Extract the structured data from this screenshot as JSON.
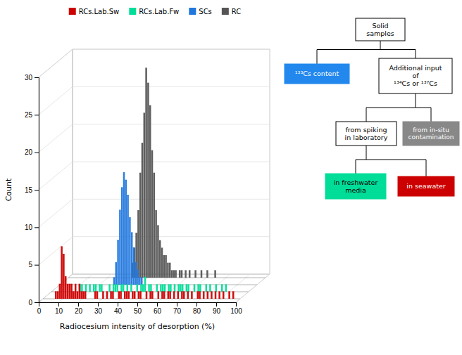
{
  "chart_data": {
    "type": "histogram",
    "xlabel": "Radiocesium intensity of desorption (%)",
    "ylabel": "Count",
    "bins": [
      0,
      1,
      2,
      3,
      4,
      5,
      6,
      7,
      8,
      9,
      10,
      11,
      12,
      13,
      14,
      15,
      16,
      17,
      18,
      19,
      20,
      21,
      22,
      23,
      24,
      25,
      26,
      27,
      28,
      29,
      30,
      31,
      32,
      33,
      34,
      35,
      36,
      37,
      38,
      39,
      40,
      41,
      42,
      43,
      44,
      45,
      46,
      47,
      48,
      49,
      50,
      51,
      52,
      53,
      54,
      55,
      56,
      57,
      58,
      59,
      60,
      61,
      62,
      63,
      64,
      65,
      66,
      67,
      68,
      69,
      70,
      71,
      72,
      73,
      74,
      75,
      76,
      77,
      78,
      79,
      80,
      81,
      82,
      83,
      84,
      85,
      86,
      87,
      88,
      89,
      90,
      91,
      92,
      93,
      94,
      95,
      96,
      97,
      98,
      99,
      100
    ],
    "series": [
      {
        "name": "RCs.Lab.Sw",
        "color": "#cc0000",
        "values": [
          0,
          0,
          0,
          0,
          0,
          0,
          1,
          1,
          2,
          7,
          6,
          3,
          2,
          2,
          2,
          1,
          2,
          1,
          2,
          1,
          1,
          1,
          0,
          0,
          0,
          0,
          1,
          1,
          0,
          0,
          1,
          0,
          1,
          0,
          1,
          1,
          0,
          0,
          1,
          1,
          0,
          1,
          1,
          1,
          0,
          1,
          1,
          0,
          1,
          1,
          0,
          0,
          1,
          0,
          1,
          1,
          0,
          0,
          1,
          0,
          1,
          1,
          0,
          1,
          1,
          0,
          1,
          0,
          1,
          0,
          1,
          1,
          0,
          1,
          0,
          1,
          0,
          0,
          1,
          1,
          0,
          1,
          0,
          1,
          0,
          1,
          0,
          1,
          0,
          1,
          0,
          1,
          0,
          0,
          1,
          0,
          1,
          0,
          0,
          0
        ]
      },
      {
        "name": "RCs.Lab.Fw",
        "color": "#00dd99",
        "values": [
          0,
          0,
          0,
          0,
          0,
          0,
          0,
          0,
          0,
          0,
          0,
          0,
          0,
          0,
          1,
          1,
          0,
          1,
          0,
          1,
          0,
          1,
          1,
          0,
          1,
          1,
          0,
          0,
          0,
          1,
          0,
          1,
          1,
          1,
          0,
          1,
          1,
          0,
          1,
          0,
          1,
          0,
          0,
          1,
          0,
          1,
          1,
          2,
          0,
          1,
          1,
          0,
          0,
          1,
          0,
          1,
          1,
          1,
          0,
          1,
          1,
          0,
          1,
          0,
          1,
          1,
          1,
          0,
          1,
          1,
          0,
          0,
          1,
          0,
          1,
          1,
          0,
          0,
          1,
          0,
          1,
          0,
          0,
          1,
          0,
          0,
          1,
          0,
          1,
          0,
          0,
          0,
          0,
          0,
          0,
          0,
          0,
          0,
          0,
          0
        ]
      },
      {
        "name": "SCs",
        "color": "#2277dd",
        "values": [
          0,
          0,
          0,
          0,
          0,
          0,
          0,
          0,
          0,
          0,
          0,
          0,
          0,
          0,
          0,
          0,
          0,
          0,
          0,
          0,
          0,
          0,
          0,
          0,
          0,
          0,
          0,
          1,
          3,
          6,
          10,
          13,
          15,
          14,
          12,
          9,
          7,
          5,
          3,
          2,
          1,
          1,
          0,
          0,
          0,
          0,
          0,
          0,
          0,
          0,
          0,
          0,
          0,
          0,
          0,
          0,
          0,
          0,
          0,
          0,
          0,
          0,
          0,
          0,
          0,
          0,
          0,
          0,
          0,
          0,
          0,
          0,
          0,
          0,
          0,
          0,
          0,
          0,
          0,
          0,
          0,
          0,
          0,
          0,
          0,
          0,
          0,
          0,
          0,
          0,
          0,
          0,
          0,
          0,
          0,
          0,
          0,
          0,
          0,
          0
        ]
      },
      {
        "name": "RC",
        "color": "#555555",
        "values": [
          0,
          0,
          0,
          0,
          0,
          0,
          0,
          0,
          0,
          0,
          0,
          0,
          0,
          0,
          0,
          0,
          0,
          0,
          0,
          0,
          0,
          0,
          0,
          0,
          0,
          0,
          0,
          0,
          0,
          0,
          0,
          0,
          2,
          4,
          6,
          9,
          14,
          18,
          22,
          28,
          26,
          23,
          17,
          14,
          9,
          7,
          5,
          4,
          3,
          3,
          2,
          2,
          1,
          1,
          1,
          0,
          1,
          1,
          0,
          1,
          0,
          1,
          0,
          0,
          1,
          0,
          0,
          1,
          0,
          0,
          1,
          0,
          0,
          0,
          1,
          0,
          0,
          0,
          0,
          0,
          0,
          0,
          0,
          0,
          0,
          0,
          0,
          0,
          0,
          0,
          0,
          0,
          0,
          0,
          0,
          0,
          0,
          0,
          0,
          0
        ]
      }
    ],
    "xlim": [
      0,
      100
    ],
    "xticks": [
      0,
      10,
      20,
      30,
      40,
      50,
      60,
      70,
      80,
      90,
      100
    ],
    "ylim": [
      0,
      30
    ],
    "yticks": [
      0,
      5,
      10,
      15,
      20,
      25,
      30
    ],
    "grid": true,
    "legend": "top",
    "annotations": [
      {
        "text": "Solid\nsamples"
      },
      {
        "text": "¹³³Cs content",
        "color": "#2288ee"
      },
      {
        "text": "Additional input\nof\n¹³⁴Cs or ¹³⁷Cs"
      },
      {
        "text": "from spiking\nin laboratory"
      },
      {
        "text": "from in-situ\ncontamination",
        "color": "#888888"
      },
      {
        "text": "in freshwater\nmedia",
        "color": "#00dd99"
      },
      {
        "text": "in seawater",
        "color": "#cc0000"
      }
    ]
  }
}
